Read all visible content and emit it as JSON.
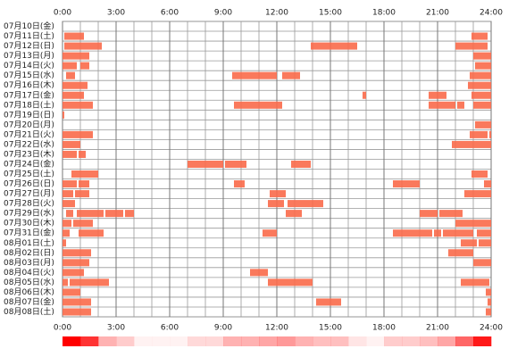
{
  "chart_data": {
    "type": "timeline",
    "categories": [
      "07月10日(金)",
      "07月11日(土)",
      "07月12日(日)",
      "07月13日(月)",
      "07月14日(火)",
      "07月15日(水)",
      "07月16日(木)",
      "07月17日(金)",
      "07月18日(土)",
      "07月19日(日)",
      "07月20日(月)",
      "07月21日(火)",
      "07月22日(水)",
      "07月23日(木)",
      "07月24日(金)",
      "07月25日(土)",
      "07月26日(日)",
      "07月27日(月)",
      "07月28日(火)",
      "07月29日(水)",
      "07月30日(木)",
      "07月31日(金)",
      "08月01日(土)",
      "08月02日(日)",
      "08月03日(月)",
      "08月04日(火)",
      "08月05日(水)",
      "08月06日(木)",
      "08月07日(金)",
      "08月08日(土)"
    ],
    "rows": [
      [],
      [
        [
          0.1,
          1.2
        ],
        [
          22.9,
          23.8
        ]
      ],
      [
        [
          0.1,
          2.2
        ],
        [
          13.9,
          16.5
        ],
        [
          22.0,
          23.8
        ]
      ],
      [
        [
          0,
          1.5
        ],
        [
          23.0,
          24
        ]
      ],
      [
        [
          0,
          0.8
        ],
        [
          1.0,
          1.5
        ],
        [
          23.1,
          24
        ]
      ],
      [
        [
          0.2,
          0.7
        ],
        [
          9.5,
          12.0
        ],
        [
          12.3,
          13.3
        ],
        [
          22.8,
          24
        ]
      ],
      [
        [
          0,
          1.4
        ],
        [
          22.7,
          24
        ]
      ],
      [
        [
          0,
          1.2
        ],
        [
          16.8,
          17.0
        ],
        [
          20.5,
          21.5
        ],
        [
          22.9,
          24
        ]
      ],
      [
        [
          0,
          1.7
        ],
        [
          9.6,
          12.3
        ],
        [
          20.5,
          22.0
        ],
        [
          22.1,
          22.5
        ],
        [
          23.0,
          24
        ]
      ],
      [
        [
          0,
          0.1
        ]
      ],
      [
        [
          23.1,
          24
        ]
      ],
      [
        [
          0,
          1.7
        ],
        [
          22.8,
          23.8
        ],
        [
          23.9,
          24
        ]
      ],
      [
        [
          0,
          1.0
        ],
        [
          21.8,
          24
        ]
      ],
      [
        [
          0,
          0.8
        ],
        [
          0.9,
          1.3
        ]
      ],
      [
        [
          7.0,
          9.0
        ],
        [
          9.1,
          10.3
        ],
        [
          12.8,
          13.9
        ]
      ],
      [
        [
          0.5,
          2.0
        ],
        [
          22.9,
          23.8
        ]
      ],
      [
        [
          0,
          0.8
        ],
        [
          0.9,
          1.5
        ],
        [
          9.6,
          10.2
        ],
        [
          18.5,
          20.0
        ],
        [
          23.6,
          24
        ]
      ],
      [
        [
          0,
          0.6
        ],
        [
          0.7,
          1.5
        ],
        [
          11.6,
          12.5
        ],
        [
          22.5,
          24
        ]
      ],
      [
        [
          0,
          0.7
        ],
        [
          11.5,
          12.4
        ],
        [
          12.6,
          14.6
        ]
      ],
      [
        [
          0.2,
          0.6
        ],
        [
          0.8,
          2.3
        ],
        [
          2.4,
          3.4
        ],
        [
          3.5,
          4.0
        ],
        [
          12.5,
          13.4
        ],
        [
          20.0,
          21.0
        ],
        [
          21.1,
          22.4
        ]
      ],
      [
        [
          0,
          0.5
        ],
        [
          0.6,
          1.7
        ],
        [
          22.0,
          24
        ]
      ],
      [
        [
          0,
          0.4
        ],
        [
          0.9,
          2.3
        ],
        [
          11.2,
          12.0
        ],
        [
          18.5,
          20.7
        ],
        [
          20.8,
          21.2
        ],
        [
          21.3,
          23.0
        ],
        [
          23.2,
          24
        ]
      ],
      [
        [
          0,
          0.2
        ],
        [
          22.3,
          23.2
        ],
        [
          23.3,
          24
        ]
      ],
      [
        [
          0,
          1.6
        ],
        [
          21.6,
          23.0
        ]
      ],
      [
        [
          0,
          1.5
        ],
        [
          23.0,
          24
        ]
      ],
      [
        [
          0,
          1.2
        ],
        [
          10.5,
          11.5
        ]
      ],
      [
        [
          0,
          0.3
        ],
        [
          0.4,
          2.6
        ],
        [
          11.5,
          14.0
        ],
        [
          22.3,
          23.9
        ]
      ],
      [
        [
          0,
          1.0
        ],
        [
          23.7,
          24
        ]
      ],
      [
        [
          0,
          1.6
        ],
        [
          14.2,
          15.6
        ],
        [
          23.8,
          24
        ]
      ],
      [
        [
          0,
          1.6
        ],
        [
          23.7,
          24
        ]
      ]
    ],
    "color": "#fa6a4a",
    "xlim": [
      0,
      24
    ],
    "xticks": [
      {
        "value": 0,
        "label": "0:00"
      },
      {
        "value": 3,
        "label": "3:00"
      },
      {
        "value": 6,
        "label": "6:00"
      },
      {
        "value": 9,
        "label": "9:00"
      },
      {
        "value": 12,
        "label": "12:00"
      },
      {
        "value": 15,
        "label": "15:00"
      },
      {
        "value": 18,
        "label": "18:00"
      },
      {
        "value": 21,
        "label": "21:00"
      },
      {
        "value": 24,
        "label": "24:00"
      }
    ],
    "density": [
      1.0,
      0.8,
      0.3,
      0.2,
      0.05,
      0.05,
      0.05,
      0.15,
      0.15,
      0.3,
      0.3,
      0.35,
      0.4,
      0.3,
      0.25,
      0.25,
      0.1,
      0.05,
      0.2,
      0.2,
      0.25,
      0.35,
      0.6,
      0.9
    ],
    "density_color": "#ff0000"
  }
}
